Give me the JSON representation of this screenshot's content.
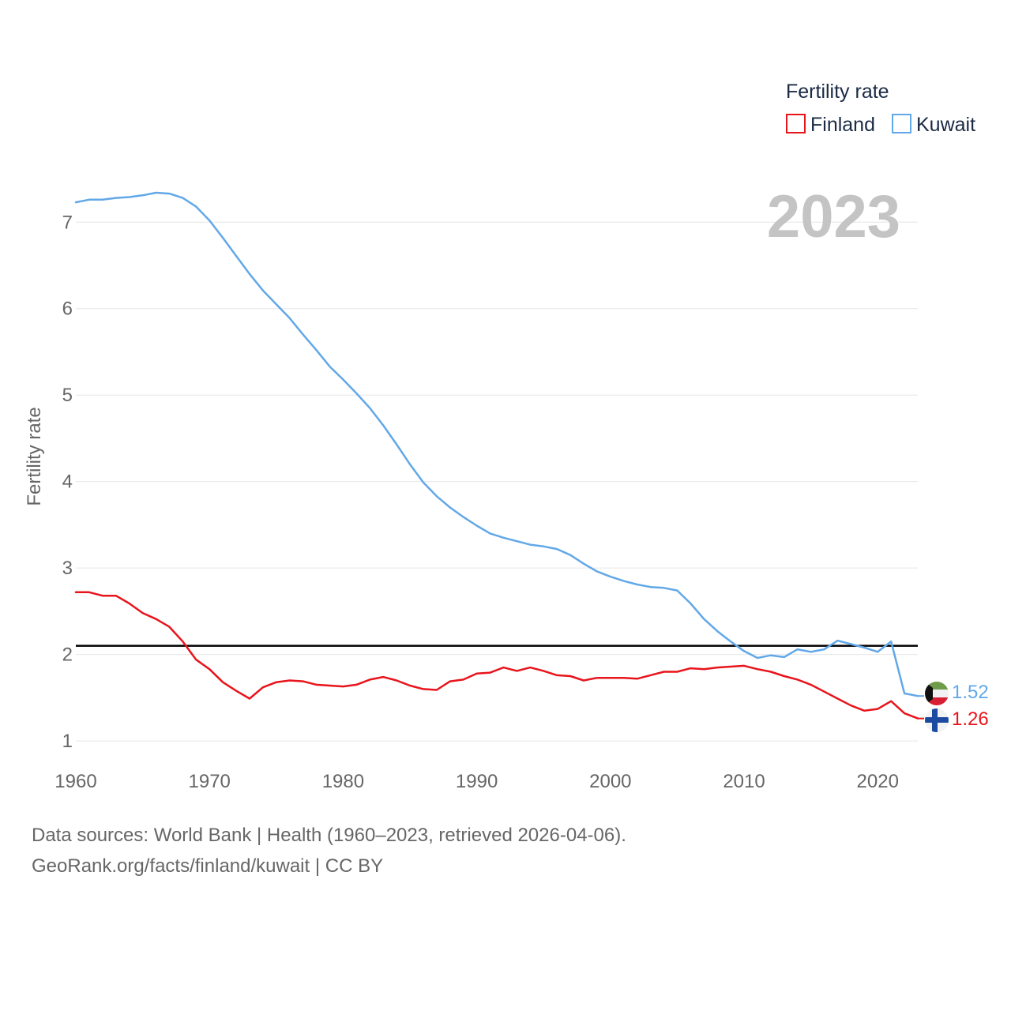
{
  "chart_data": {
    "type": "line",
    "title": "Fertility rate",
    "year_label": "2023",
    "xlabel": "",
    "ylabel": "Fertility rate",
    "xlim": [
      1960,
      2023
    ],
    "ylim": [
      0.8,
      7.45
    ],
    "x_ticks": [
      1960,
      1970,
      1980,
      1990,
      2000,
      2010,
      2020
    ],
    "y_ticks": [
      1,
      2,
      3,
      4,
      5,
      6,
      7
    ],
    "grid": true,
    "legend": "top-right",
    "reference_line": {
      "value": 2.1,
      "color": "#000000"
    },
    "x": [
      1960,
      1961,
      1962,
      1963,
      1964,
      1965,
      1966,
      1967,
      1968,
      1969,
      1970,
      1971,
      1972,
      1973,
      1974,
      1975,
      1976,
      1977,
      1978,
      1979,
      1980,
      1981,
      1982,
      1983,
      1984,
      1985,
      1986,
      1987,
      1988,
      1989,
      1990,
      1991,
      1992,
      1993,
      1994,
      1995,
      1996,
      1997,
      1998,
      1999,
      2000,
      2001,
      2002,
      2003,
      2004,
      2005,
      2006,
      2007,
      2008,
      2009,
      2010,
      2011,
      2012,
      2013,
      2014,
      2015,
      2016,
      2017,
      2018,
      2019,
      2020,
      2021,
      2022,
      2023
    ],
    "series": [
      {
        "name": "Finland",
        "color": "#e8141c",
        "end_label": "1.26",
        "flag": "finland",
        "values": [
          2.72,
          2.72,
          2.68,
          2.68,
          2.59,
          2.48,
          2.41,
          2.32,
          2.15,
          1.94,
          1.83,
          1.68,
          1.58,
          1.49,
          1.62,
          1.68,
          1.7,
          1.69,
          1.65,
          1.64,
          1.63,
          1.65,
          1.71,
          1.74,
          1.7,
          1.64,
          1.6,
          1.59,
          1.69,
          1.71,
          1.78,
          1.79,
          1.85,
          1.81,
          1.85,
          1.81,
          1.76,
          1.75,
          1.7,
          1.73,
          1.73,
          1.73,
          1.72,
          1.76,
          1.8,
          1.8,
          1.84,
          1.83,
          1.85,
          1.86,
          1.87,
          1.83,
          1.8,
          1.75,
          1.71,
          1.65,
          1.57,
          1.49,
          1.41,
          1.35,
          1.37,
          1.46,
          1.32,
          1.26
        ]
      },
      {
        "name": "Kuwait",
        "color": "#62a8e8",
        "end_label": "1.52",
        "flag": "kuwait",
        "values": [
          7.23,
          7.26,
          7.26,
          7.28,
          7.29,
          7.31,
          7.34,
          7.33,
          7.28,
          7.18,
          7.02,
          6.82,
          6.61,
          6.4,
          6.21,
          6.05,
          5.89,
          5.7,
          5.52,
          5.33,
          5.18,
          5.02,
          4.85,
          4.65,
          4.43,
          4.2,
          3.99,
          3.83,
          3.7,
          3.59,
          3.49,
          3.4,
          3.35,
          3.31,
          3.27,
          3.25,
          3.22,
          3.15,
          3.05,
          2.96,
          2.9,
          2.85,
          2.81,
          2.78,
          2.77,
          2.74,
          2.59,
          2.41,
          2.27,
          2.15,
          2.04,
          1.96,
          1.99,
          1.97,
          2.06,
          2.03,
          2.06,
          2.16,
          2.12,
          2.08,
          2.03,
          2.15,
          1.55,
          1.52
        ]
      }
    ]
  },
  "footer": {
    "line1": "Data sources: World Bank | Health (1960–2023, retrieved 2026-04-06).",
    "line2": "GeoRank.org/facts/finland/kuwait | CC BY"
  }
}
